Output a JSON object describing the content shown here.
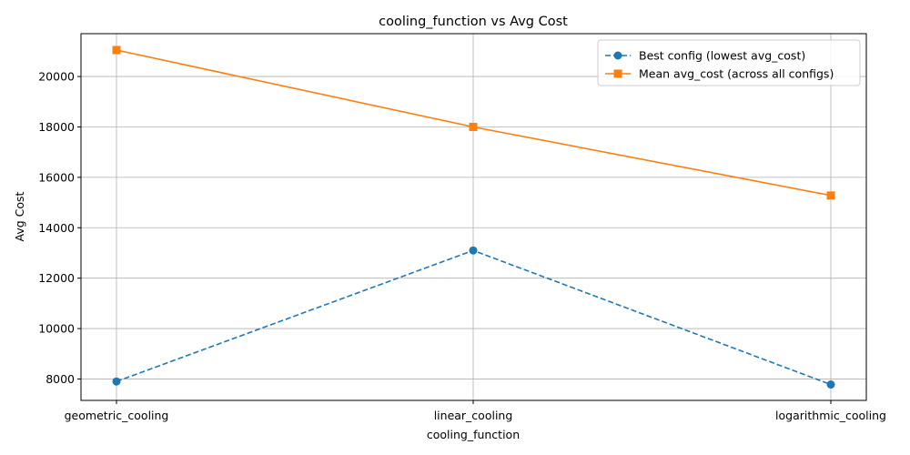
{
  "chart_data": {
    "type": "line",
    "title": "cooling_function vs Avg Cost",
    "xlabel": "cooling_function",
    "ylabel": "Avg Cost",
    "categories": [
      "geometric_cooling",
      "linear_cooling",
      "logarithmic_cooling"
    ],
    "yticks": [
      "8000",
      "10000",
      "12000",
      "14000",
      "16000",
      "18000",
      "20000"
    ],
    "ylim": [
      7150,
      21700
    ],
    "grid": true,
    "legend_position": "top-right",
    "series": [
      {
        "name": "Best config (lowest avg_cost)",
        "values": [
          7900,
          13100,
          7780
        ],
        "color": "#1f77b4",
        "linestyle": "dashed",
        "marker": "circle"
      },
      {
        "name": "Mean avg_cost (across all configs)",
        "values": [
          21050,
          18000,
          15280
        ],
        "color": "#ff7f0e",
        "linestyle": "solid",
        "marker": "square"
      }
    ]
  }
}
